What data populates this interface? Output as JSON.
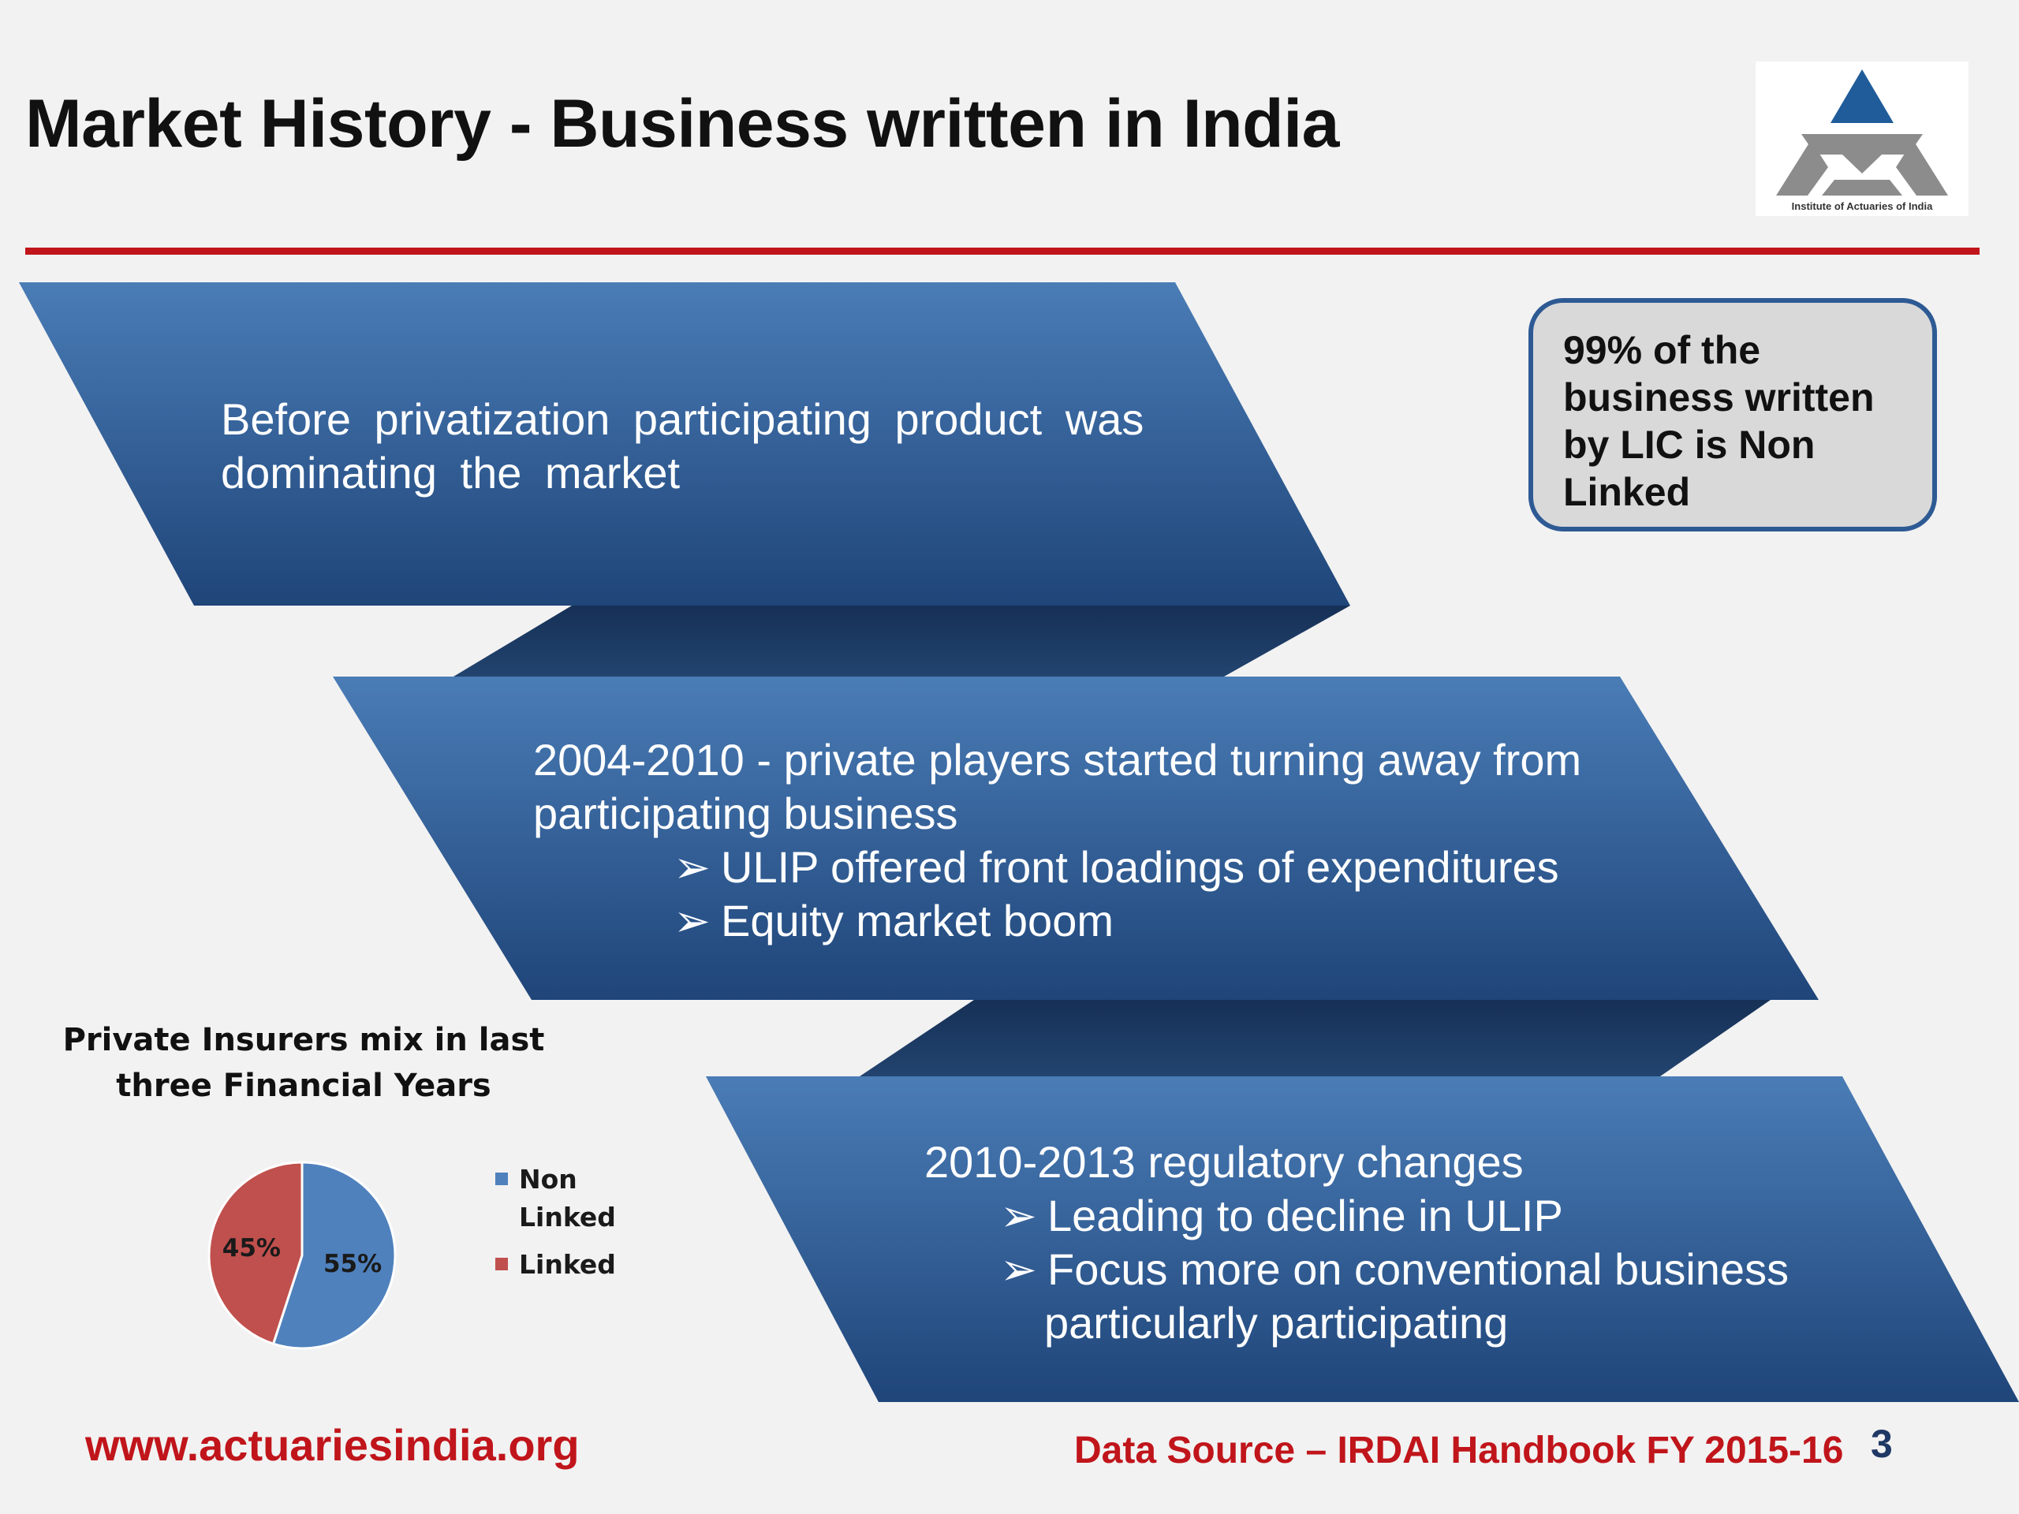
{
  "slide": {
    "title": "Market History - Business written in India"
  },
  "logo": {
    "caption": "Institute of Actuaries of India",
    "colors": {
      "triangle": "#1f5c99",
      "chevrons": "#8c8c8c"
    }
  },
  "bands": [
    {
      "lines": [
        "Before  privatization  participating  product  was",
        "dominating the market"
      ],
      "bullets": []
    },
    {
      "lines": [
        "2004-2010 -  private players started turning away from",
        "participating business"
      ],
      "bullets": [
        "ULIP offered front loadings of expenditures",
        "Equity market boom"
      ]
    },
    {
      "lines": [
        "2010-2013 regulatory changes"
      ],
      "bullets": [
        "Leading to decline in ULIP",
        "Focus more on conventional business"
      ],
      "continuation": "particularly participating"
    }
  ],
  "bullet_glyph": "➢",
  "callout": {
    "text": "99% of the business written by LIC is Non Linked"
  },
  "chart_data": {
    "type": "pie",
    "title": "Private Insurers mix in last three Financial Years",
    "slices": [
      {
        "name": "Non Linked",
        "value": 55,
        "label": "55%",
        "color": "#4f81bd"
      },
      {
        "name": "Linked",
        "value": 45,
        "label": "45%",
        "color": "#c0504d"
      }
    ],
    "legend_placement": "right",
    "legend": [
      {
        "lines": [
          "Non",
          "Linked"
        ],
        "color": "#4f81bd"
      },
      {
        "lines": [
          "Linked"
        ],
        "color": "#c0504d"
      }
    ]
  },
  "footer": {
    "url": "www.actuariesindia.org",
    "source": "Data Source – IRDAI Handbook FY 2015-16",
    "page_number": "3"
  },
  "colors": {
    "accent_red": "#c0151b",
    "band_top": "#4a7cb6",
    "band_bottom": "#1f4579",
    "band_connector": "#1b3860"
  }
}
